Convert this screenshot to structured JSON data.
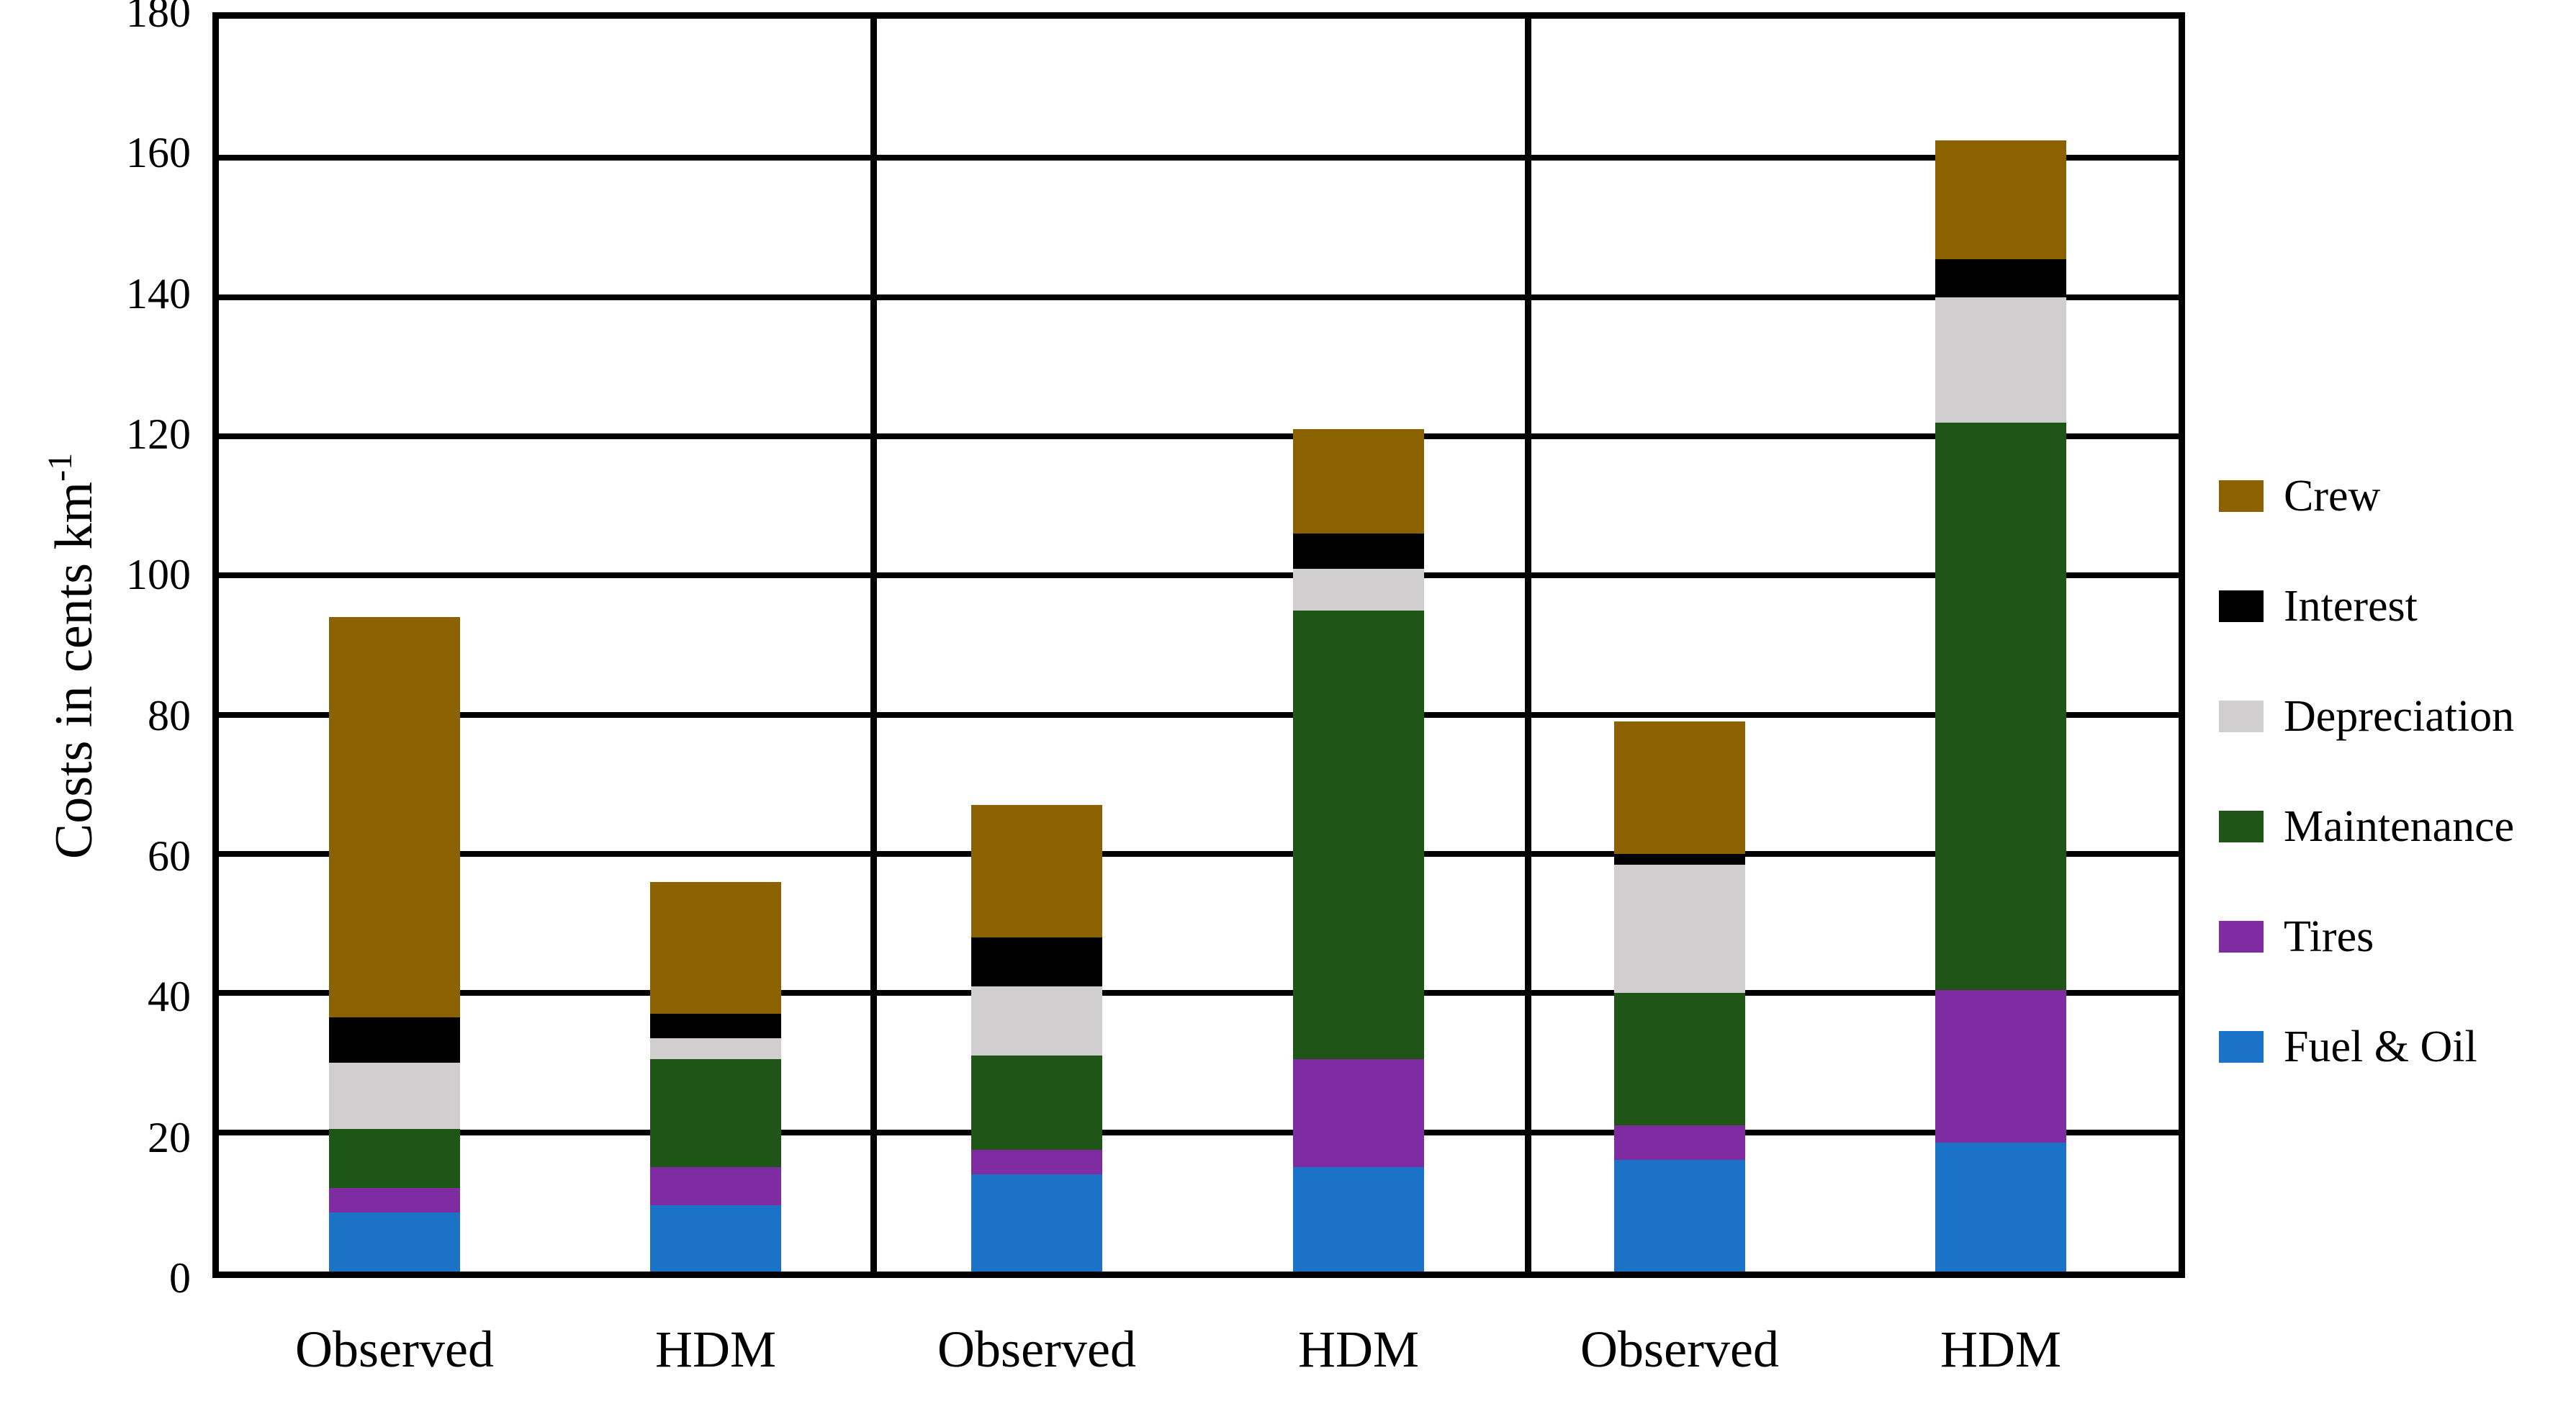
{
  "chart_data": {
    "type": "bar",
    "stacked": true,
    "grid": "horizontal",
    "legend_position": "right",
    "ylabel": {
      "text": "Costs in cents km",
      "superscript": "-1"
    },
    "ylim": [
      0,
      180
    ],
    "ytick_step": 20,
    "yticks": [
      180,
      160,
      140,
      120,
      100,
      80,
      60,
      40,
      20,
      0
    ],
    "categories": [
      "Observed",
      "HDM",
      "Observed",
      "HDM",
      "Observed",
      "HDM"
    ],
    "panels": 3,
    "series": [
      {
        "name": "Fuel & Oil",
        "color": "#1B73C7",
        "values": [
          8.5,
          9.5,
          14,
          15,
          16,
          18.5
        ]
      },
      {
        "name": "Tires",
        "color": "#7F2BA1",
        "values": [
          3.5,
          5.5,
          3.5,
          15.5,
          5,
          22
        ]
      },
      {
        "name": "Maintenance",
        "color": "#1F5516",
        "values": [
          8.5,
          15.5,
          13.5,
          64.5,
          19,
          81.5
        ]
      },
      {
        "name": "Depreciation",
        "color": "#D0CECE",
        "values": [
          9.5,
          3,
          10,
          6,
          18.5,
          18
        ]
      },
      {
        "name": "Interest",
        "color": "#000000",
        "values": [
          6.5,
          3.5,
          7,
          5,
          1.5,
          5.5
        ]
      },
      {
        "name": "Crew",
        "color": "#8C6100",
        "values": [
          57.5,
          19,
          19,
          15,
          19,
          17
        ]
      }
    ],
    "totals": [
      94,
      56,
      67,
      121,
      79,
      162.5
    ],
    "legend_labels": [
      "Crew",
      "Interest",
      "Depreciation",
      "Maintenance",
      "Tires",
      "Fuel & Oil"
    ]
  }
}
